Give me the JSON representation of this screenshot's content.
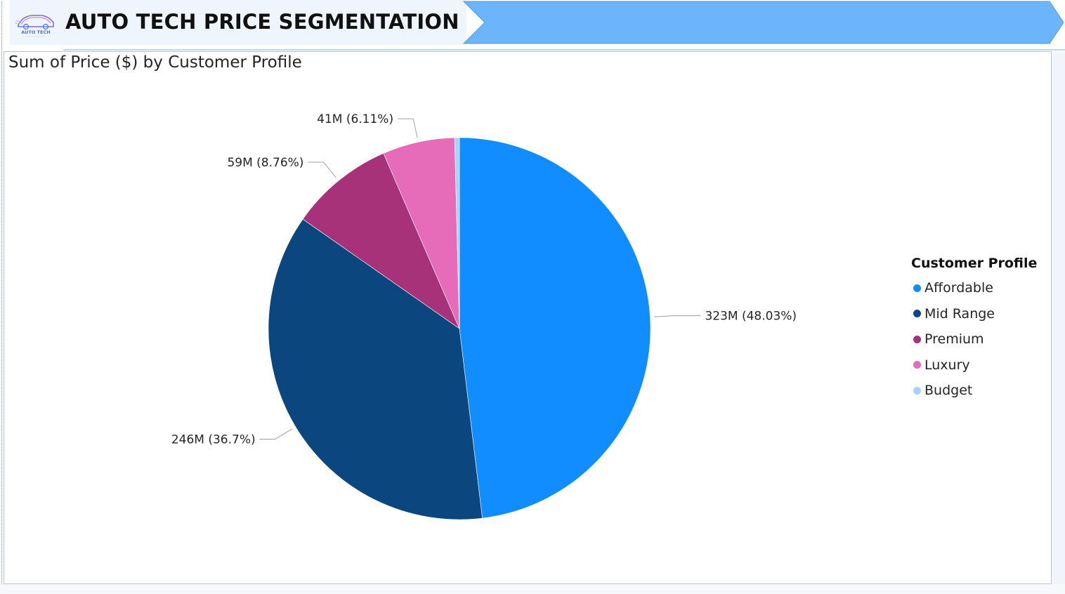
{
  "header": {
    "title": "AUTO TECH PRICE SEGMENTATION",
    "logo_text": "AUTO TECH",
    "accent_color": "#6cb4fb"
  },
  "chart_data": {
    "type": "pie",
    "title": "Sum of Price ($) by Customer Profile",
    "legend_title": "Customer Profile",
    "legend_position": "right",
    "start_angle_deg": 0,
    "direction": "clockwise",
    "slices": [
      {
        "name": "Affordable",
        "value": 323,
        "label": "323M (48.03%)",
        "color": "#118dff"
      },
      {
        "name": "Mid Range",
        "value": 246,
        "label": "246M (36.7%)",
        "color": "#0b477e"
      },
      {
        "name": "Premium",
        "value": 59,
        "label": "59M (8.76%)",
        "color": "#a8327a"
      },
      {
        "name": "Luxury",
        "value": 41,
        "label": "41M (6.11%)",
        "color": "#e66cba"
      },
      {
        "name": "Budget",
        "value": 2.7,
        "label": "",
        "color": "#a7d2fa"
      }
    ]
  }
}
